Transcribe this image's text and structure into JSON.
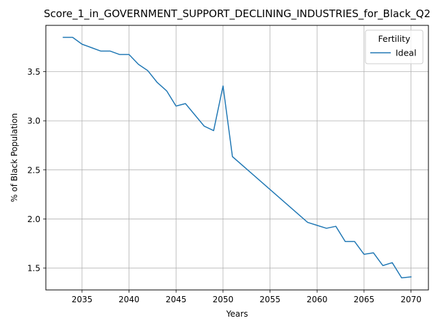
{
  "chart_data": {
    "type": "line",
    "title": "Score_1_in_GOVERNMENT_SUPPORT_DECLINING_INDUSTRIES_for_Black_Q2",
    "xlabel": "Years",
    "ylabel": "% of Black Population",
    "xlim": [
      2031.15,
      2071.85
    ],
    "ylim": [
      1.277,
      3.972
    ],
    "x_ticks": [
      2035,
      2040,
      2045,
      2050,
      2055,
      2060,
      2065,
      2070
    ],
    "y_ticks": [
      1.5,
      2.0,
      2.5,
      3.0,
      3.5
    ],
    "grid": true,
    "legend": {
      "title": "Fertility",
      "placement": "top-right"
    },
    "series": [
      {
        "name": "Ideal",
        "color": "#1f77b4",
        "x": [
          2033,
          2034,
          2035,
          2036,
          2037,
          2038,
          2039,
          2040,
          2041,
          2042,
          2043,
          2044,
          2045,
          2046,
          2047,
          2048,
          2049,
          2050,
          2051,
          2059,
          2060,
          2061,
          2062,
          2063,
          2064,
          2065,
          2066,
          2067,
          2068,
          2069,
          2070
        ],
        "y": [
          3.85,
          3.85,
          3.78,
          3.745,
          3.71,
          3.71,
          3.675,
          3.675,
          3.575,
          3.51,
          3.39,
          3.305,
          3.15,
          3.175,
          3.06,
          2.945,
          2.9,
          3.355,
          2.635,
          1.965,
          1.935,
          1.905,
          1.925,
          1.77,
          1.77,
          1.64,
          1.655,
          1.525,
          1.555,
          1.4,
          1.41
        ]
      }
    ]
  }
}
